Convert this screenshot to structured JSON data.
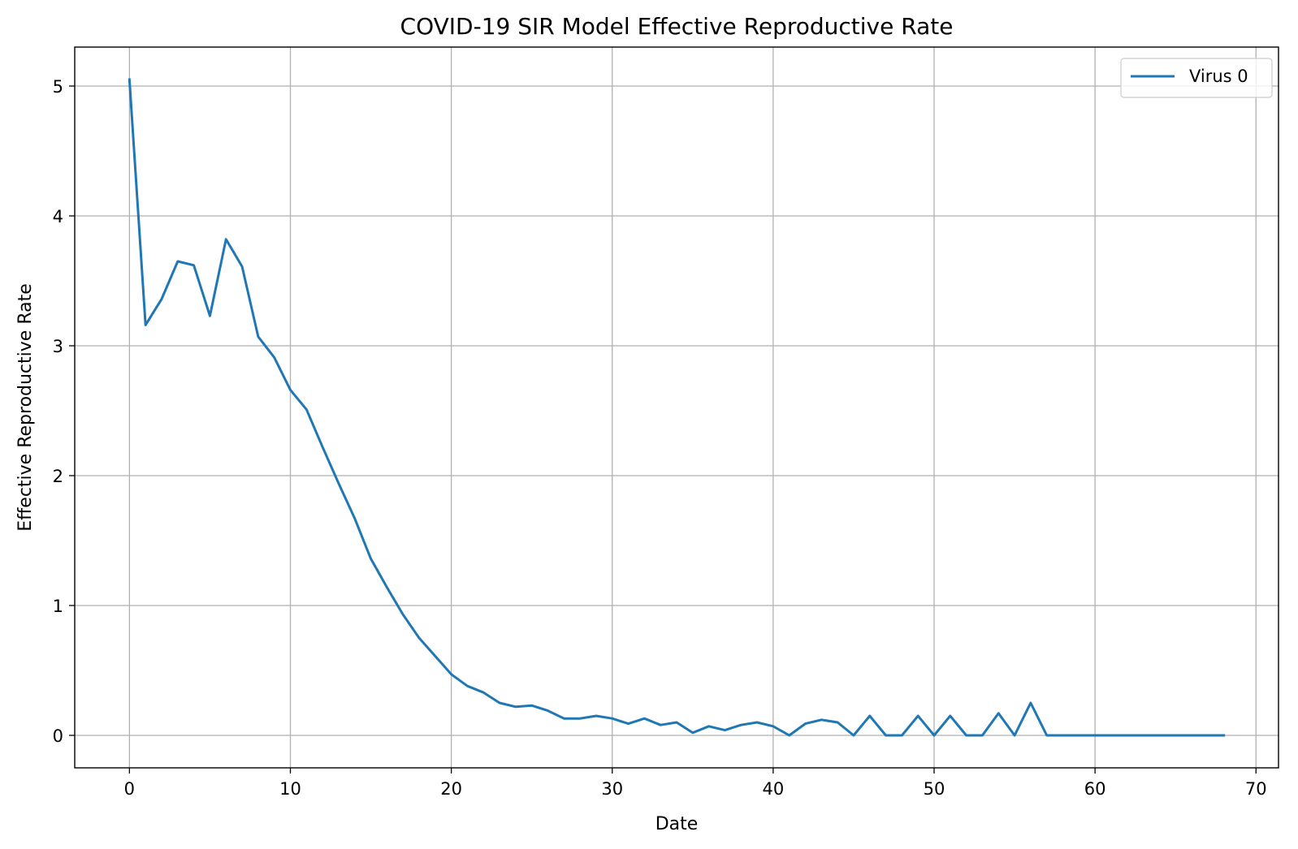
{
  "chart_data": {
    "type": "line",
    "title": "COVID-19 SIR Model Effective Reproductive Rate",
    "xlabel": "Date",
    "ylabel": "Effective Reproductive Rate",
    "xlim": [
      -3.4,
      71.4
    ],
    "ylim": [
      -0.25,
      5.3
    ],
    "x_ticks": [
      0,
      10,
      20,
      30,
      40,
      50,
      60,
      70
    ],
    "y_ticks": [
      0,
      1,
      2,
      3,
      4,
      5
    ],
    "grid": true,
    "legend_position": "top-right",
    "series": [
      {
        "name": "Virus 0",
        "color": "#1f77b4",
        "x": [
          0,
          1,
          2,
          3,
          4,
          5,
          6,
          7,
          8,
          9,
          10,
          11,
          12,
          13,
          14,
          15,
          16,
          17,
          18,
          19,
          20,
          21,
          22,
          23,
          24,
          25,
          26,
          27,
          28,
          29,
          30,
          31,
          32,
          33,
          34,
          35,
          36,
          37,
          38,
          39,
          40,
          41,
          42,
          43,
          44,
          45,
          46,
          47,
          48,
          49,
          50,
          51,
          52,
          53,
          54,
          55,
          56,
          57,
          58,
          59,
          60,
          61,
          62,
          63,
          64,
          65,
          66,
          67,
          68
        ],
        "values": [
          5.05,
          3.16,
          3.36,
          3.65,
          3.62,
          3.23,
          3.82,
          3.61,
          3.07,
          2.91,
          2.66,
          2.51,
          2.22,
          1.94,
          1.67,
          1.36,
          1.14,
          0.93,
          0.75,
          0.61,
          0.47,
          0.38,
          0.33,
          0.25,
          0.22,
          0.23,
          0.19,
          0.13,
          0.13,
          0.15,
          0.13,
          0.09,
          0.13,
          0.08,
          0.1,
          0.02,
          0.07,
          0.04,
          0.08,
          0.1,
          0.07,
          0.0,
          0.09,
          0.12,
          0.1,
          0.0,
          0.15,
          0.0,
          0.0,
          0.15,
          0.0,
          0.15,
          0.0,
          0.0,
          0.17,
          0.0,
          0.25,
          0.0,
          0.0,
          0.0,
          0.0,
          0.0,
          0.0,
          0.0,
          0.0,
          0.0,
          0.0,
          0.0,
          0.0
        ]
      }
    ]
  }
}
